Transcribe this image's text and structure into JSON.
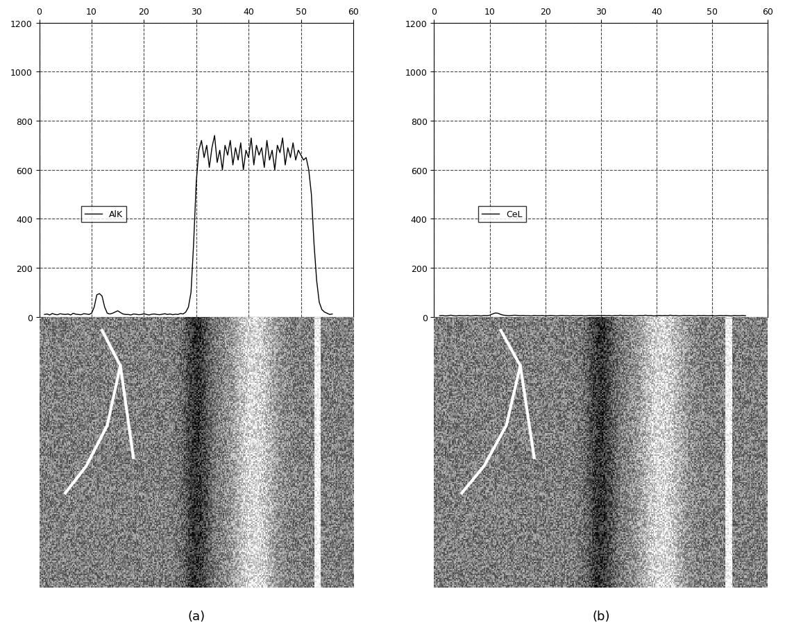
{
  "chart_data": [
    {
      "type": "line",
      "title": "(a)",
      "grid": true,
      "legend": "center left",
      "xlim": [
        0,
        60
      ],
      "xticks": [
        0,
        10,
        20,
        30,
        40,
        50,
        60
      ],
      "ylim": [
        0,
        1200
      ],
      "yticks": [
        0,
        200,
        400,
        600,
        800,
        1000,
        1200
      ],
      "x": [
        1,
        1.5,
        2,
        2.5,
        3,
        3.5,
        4,
        4.5,
        5,
        5.5,
        6,
        6.5,
        7,
        7.5,
        8,
        8.5,
        9,
        9.5,
        10,
        10.5,
        11,
        11.5,
        12,
        12.5,
        13,
        13.5,
        14,
        14.5,
        15,
        15.5,
        16,
        16.5,
        17,
        17.5,
        18,
        18.5,
        19,
        19.5,
        20,
        20.5,
        21,
        21.5,
        22,
        22.5,
        23,
        23.5,
        24,
        24.5,
        25,
        25.5,
        26,
        26.5,
        27,
        27.5,
        28,
        28.5,
        29,
        29.5,
        30,
        30.5,
        31,
        31.5,
        32,
        32.5,
        33,
        33.5,
        34,
        34.5,
        35,
        35.5,
        36,
        36.5,
        37,
        37.5,
        38,
        38.5,
        39,
        39.5,
        40,
        40.5,
        41,
        41.5,
        42,
        42.5,
        43,
        43.5,
        44,
        44.5,
        45,
        45.5,
        46,
        46.5,
        47,
        47.5,
        48,
        48.5,
        49,
        49.5,
        50,
        50.5,
        51,
        51.5,
        52,
        52.5,
        53,
        53.5,
        54,
        54.5,
        55,
        55.5,
        56
      ],
      "series": [
        {
          "name": "AlK",
          "color": "#000000",
          "values": [
            10,
            12,
            8,
            14,
            10,
            9,
            13,
            11,
            10,
            12,
            8,
            15,
            11,
            10,
            9,
            13,
            12,
            10,
            15,
            40,
            90,
            95,
            85,
            40,
            15,
            12,
            15,
            20,
            25,
            18,
            12,
            10,
            10,
            8,
            12,
            11,
            9,
            10,
            13,
            10,
            8,
            11,
            12,
            10,
            9,
            11,
            13,
            10,
            12,
            9,
            11,
            10,
            14,
            12,
            20,
            40,
            100,
            300,
            550,
            680,
            720,
            650,
            700,
            610,
            690,
            740,
            630,
            680,
            600,
            700,
            660,
            720,
            620,
            690,
            640,
            710,
            600,
            680,
            650,
            730,
            620,
            700,
            660,
            690,
            610,
            720,
            640,
            680,
            600,
            700,
            670,
            730,
            620,
            690,
            650,
            710,
            640,
            680,
            660,
            640,
            650,
            600,
            500,
            300,
            150,
            60,
            30,
            20,
            15,
            10,
            12
          ]
        }
      ]
    },
    {
      "type": "line",
      "title": "(b)",
      "grid": true,
      "legend": "center left",
      "xlim": [
        0,
        60
      ],
      "xticks": [
        0,
        10,
        20,
        30,
        40,
        50,
        60
      ],
      "ylim": [
        0,
        1200
      ],
      "yticks": [
        0,
        200,
        400,
        600,
        800,
        1000,
        1200
      ],
      "x": [
        1,
        1.5,
        2,
        2.5,
        3,
        3.5,
        4,
        4.5,
        5,
        5.5,
        6,
        6.5,
        7,
        7.5,
        8,
        8.5,
        9,
        9.5,
        10,
        10.5,
        11,
        11.5,
        12,
        12.5,
        13,
        13.5,
        14,
        14.5,
        15,
        15.5,
        16,
        16.5,
        17,
        17.5,
        18,
        18.5,
        19,
        19.5,
        20,
        20.5,
        21,
        21.5,
        22,
        22.5,
        23,
        23.5,
        24,
        24.5,
        25,
        25.5,
        26,
        26.5,
        27,
        27.5,
        28,
        28.5,
        29,
        29.5,
        30,
        30.5,
        31,
        31.5,
        32,
        32.5,
        33,
        33.5,
        34,
        34.5,
        35,
        35.5,
        36,
        36.5,
        37,
        37.5,
        38,
        38.5,
        39,
        39.5,
        40,
        40.5,
        41,
        41.5,
        42,
        42.5,
        43,
        43.5,
        44,
        44.5,
        45,
        45.5,
        46,
        46.5,
        47,
        47.5,
        48,
        48.5,
        49,
        49.5,
        50,
        50.5,
        51,
        51.5,
        52,
        52.5,
        53,
        53.5,
        54,
        54.5,
        55,
        55.5,
        56
      ],
      "series": [
        {
          "name": "CeL",
          "color": "#000000",
          "values": [
            5,
            6,
            4,
            5,
            7,
            5,
            4,
            6,
            5,
            5,
            6,
            4,
            5,
            6,
            5,
            4,
            6,
            5,
            7,
            12,
            16,
            15,
            10,
            7,
            6,
            5,
            6,
            7,
            6,
            5,
            6,
            5,
            5,
            4,
            6,
            5,
            5,
            6,
            4,
            5,
            6,
            5,
            4,
            5,
            6,
            5,
            5,
            4,
            6,
            5,
            5,
            6,
            4,
            5,
            6,
            5,
            5,
            6,
            5,
            6,
            5,
            6,
            4,
            6,
            5,
            7,
            5,
            6,
            5,
            6,
            4,
            5,
            6,
            5,
            7,
            5,
            6,
            4,
            5,
            6,
            5,
            6,
            5,
            7,
            5,
            6,
            4,
            5,
            6,
            5,
            6,
            5,
            4,
            6,
            5,
            6,
            5,
            5,
            6,
            4,
            5,
            6,
            5,
            6,
            5,
            4,
            6,
            5,
            5,
            6,
            5
          ]
        }
      ]
    }
  ]
}
